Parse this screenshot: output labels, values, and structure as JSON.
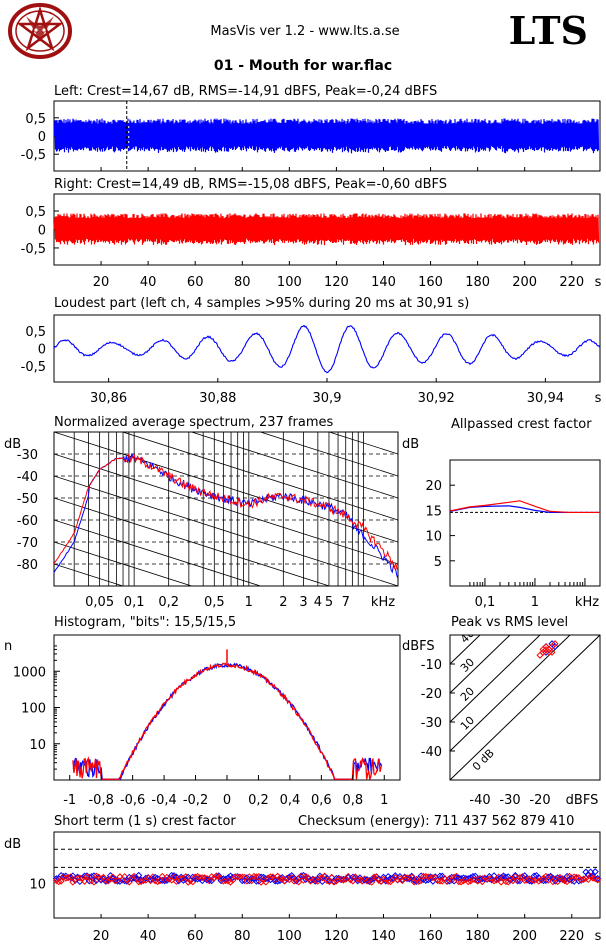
{
  "header": {
    "app": "MasVis ver 1.2 - www.lts.a.se",
    "brand": "LTS",
    "title": "01 - Mouth for war.flac",
    "logo": "pentagram-goat-logo"
  },
  "colors": {
    "left": "#0000ff",
    "right": "#ff0000",
    "grid": "#000000"
  },
  "chart_data": [
    {
      "id": "left-waveform",
      "type": "area",
      "title": "Left: Crest=14,67 dB, RMS=-14,91 dBFS, Peak=-0,24 dBFS",
      "y_ticks": [
        "0,5",
        "0",
        "-0,5"
      ],
      "ylim": [
        -1,
        1
      ],
      "xlim": [
        0,
        232
      ],
      "marker_x": 30.91,
      "series": [
        {
          "channel": "left",
          "envelope": 0.55
        }
      ]
    },
    {
      "id": "right-waveform",
      "type": "area",
      "title": "Right: Crest=14,49 dB, RMS=-15,08 dBFS, Peak=-0,60 dBFS",
      "y_ticks": [
        "0,5",
        "0",
        "-0,5"
      ],
      "x_ticks": [
        "20",
        "40",
        "60",
        "80",
        "100",
        "120",
        "140",
        "160",
        "180",
        "200",
        "220",
        "s"
      ],
      "ylim": [
        -1,
        1
      ],
      "xlim": [
        0,
        232
      ],
      "series": [
        {
          "channel": "right",
          "envelope": 0.5
        }
      ]
    },
    {
      "id": "loudest-part",
      "type": "line",
      "title": "Loudest part (left  ch, 4 samples >95% during 20 ms at 30,91 s)",
      "y_ticks": [
        "0,5",
        "0",
        "-0,5"
      ],
      "x_ticks": [
        "30,86",
        "30,88",
        "30,9",
        "30,92",
        "30,94",
        "s"
      ],
      "xlim": [
        30.85,
        30.95
      ],
      "ylim": [
        -1,
        1
      ]
    },
    {
      "id": "spectrum",
      "type": "line",
      "title": "Normalized average spectrum, 237 frames",
      "ylabel": "dB",
      "y_ticks": [
        "-30",
        "-40",
        "-50",
        "-60",
        "-70",
        "-80"
      ],
      "x_ticks": [
        "0,05",
        "0,1",
        "0,2",
        "0,5",
        "1",
        "2",
        "3",
        "4",
        "5",
        "7",
        "kHz"
      ],
      "x_scale": "log",
      "xlim": [
        0.02,
        20
      ],
      "ylim": [
        -90,
        -20
      ],
      "points": [
        [
          0.02,
          -80
        ],
        [
          0.03,
          -66
        ],
        [
          0.04,
          -45
        ],
        [
          0.05,
          -37
        ],
        [
          0.07,
          -32
        ],
        [
          0.1,
          -32
        ],
        [
          0.15,
          -36
        ],
        [
          0.2,
          -40
        ],
        [
          0.3,
          -45
        ],
        [
          0.5,
          -49
        ],
        [
          0.7,
          -51
        ],
        [
          1,
          -53
        ],
        [
          1.5,
          -50
        ],
        [
          2,
          -49
        ],
        [
          3,
          -51
        ],
        [
          5,
          -54
        ],
        [
          7,
          -58
        ],
        [
          10,
          -64
        ],
        [
          15,
          -74
        ],
        [
          20,
          -82
        ]
      ]
    },
    {
      "id": "allpassed-crest",
      "type": "line",
      "title": "Allpassed crest factor",
      "ylabel": "dB",
      "y_ticks": [
        "20",
        "15",
        "10",
        "5"
      ],
      "x_ticks": [
        "0,1",
        "1",
        "kHz"
      ],
      "x_scale": "log",
      "xlim": [
        0.02,
        20
      ],
      "ylim": [
        0,
        25
      ],
      "baseline": 14.6,
      "series": [
        {
          "channel": "left",
          "points": [
            [
              0.02,
              14.8
            ],
            [
              0.05,
              15.6
            ],
            [
              0.1,
              15.8
            ],
            [
              0.3,
              15.9
            ],
            [
              0.5,
              15.6
            ],
            [
              1,
              15.0
            ],
            [
              2,
              14.6
            ],
            [
              5,
              14.6
            ],
            [
              20,
              14.6
            ]
          ]
        },
        {
          "channel": "right",
          "points": [
            [
              0.02,
              14.9
            ],
            [
              0.05,
              15.7
            ],
            [
              0.1,
              16.0
            ],
            [
              0.3,
              16.6
            ],
            [
              0.5,
              16.9
            ],
            [
              1,
              15.8
            ],
            [
              2,
              14.8
            ],
            [
              5,
              14.6
            ],
            [
              20,
              14.6
            ]
          ]
        }
      ]
    },
    {
      "id": "histogram",
      "type": "line",
      "title": "Histogram, \"bits\": 15,5/15,5",
      "ylabel": "n",
      "y_ticks": [
        "1000",
        "100",
        "10"
      ],
      "y_scale": "log",
      "x_ticks": [
        "-1",
        "-0,8",
        "-0,6",
        "-0,4",
        "-0,2",
        "0",
        "0,2",
        "0,4",
        "0,6",
        "0,8",
        "1"
      ],
      "xlim": [
        -1.1,
        1.1
      ],
      "ylim": [
        1,
        10000
      ],
      "peak": 1500,
      "spike": 4000
    },
    {
      "id": "peak-vs-rms",
      "type": "scatter",
      "title": "Peak vs RMS level",
      "ylabel": "dBFS",
      "y_ticks": [
        "-10",
        "-20",
        "-30",
        "-40"
      ],
      "x_ticks": [
        "-40",
        "-30",
        "-20",
        "dBFS"
      ],
      "xlim": [
        -50,
        0
      ],
      "ylim": [
        -50,
        0
      ],
      "crest_lines": [
        "0 dB",
        "10",
        "20",
        "30",
        "40"
      ],
      "points_left": [
        [
          -18,
          -4
        ],
        [
          -17,
          -5
        ],
        [
          -16,
          -3
        ],
        [
          -15,
          -4
        ],
        [
          -18,
          -6
        ]
      ],
      "points_right": [
        [
          -19,
          -6
        ],
        [
          -18,
          -4
        ],
        [
          -17,
          -5
        ],
        [
          -16,
          -4
        ],
        [
          -20,
          -7
        ],
        [
          -19,
          -5
        ],
        [
          -17,
          -6
        ],
        [
          -15,
          -3
        ],
        [
          -18,
          -5
        ],
        [
          -16,
          -6
        ]
      ]
    },
    {
      "id": "short-term-crest",
      "type": "scatter",
      "title": "Short term (1 s) crest factor",
      "checksum": "Checksum (energy):  711 437 562 879 410",
      "ylabel": "dB",
      "y_ticks": [
        "10"
      ],
      "x_ticks": [
        "20",
        "40",
        "60",
        "80",
        "100",
        "120",
        "140",
        "160",
        "180",
        "200",
        "220",
        "s"
      ],
      "xlim": [
        0,
        232
      ],
      "ylim": [
        0,
        25
      ],
      "dashed": [
        14.7,
        20
      ]
    }
  ]
}
